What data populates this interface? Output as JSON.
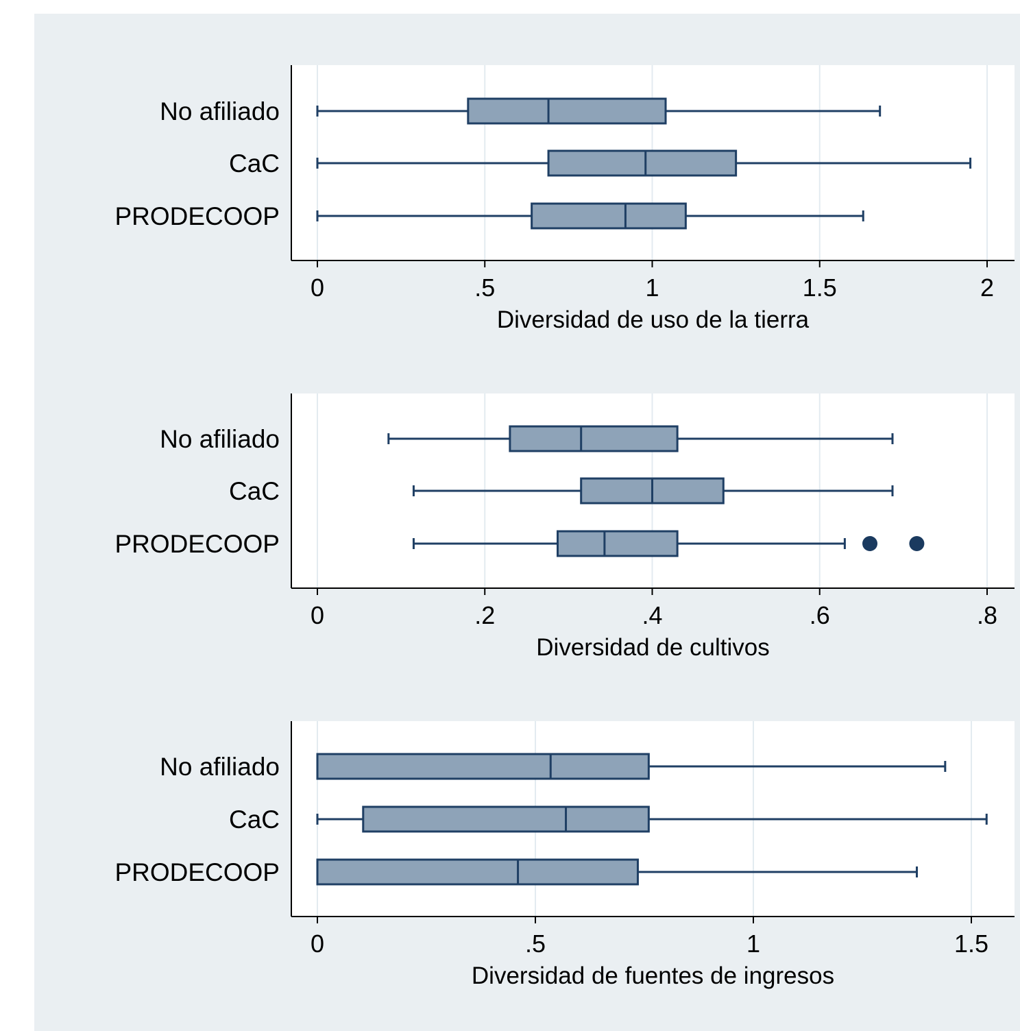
{
  "colors": {
    "outer_bg": "#eaeff2",
    "plot_bg": "#ffffff",
    "gridline": "#e3ebf0",
    "box_fill": "#8ea3b8",
    "box_stroke": "#1f3f64",
    "outlier": "#1a3a5f",
    "axis": "#000000"
  },
  "chart_data": [
    {
      "type": "box",
      "orientation": "horizontal",
      "xlabel": "Diversidad de uso de la tierra",
      "xlim": [
        0,
        2
      ],
      "ticks": [
        0,
        0.5,
        1,
        1.5,
        2
      ],
      "tick_labels": [
        "0",
        ".5",
        "1",
        "1.5",
        "2"
      ],
      "grid": true,
      "categories": [
        "No afiliado",
        "CaC",
        "PRODECOOP"
      ],
      "boxes": [
        {
          "group": "No afiliado",
          "min": 0,
          "q1": 0.45,
          "median": 0.69,
          "q3": 1.04,
          "max": 1.68,
          "outliers": []
        },
        {
          "group": "CaC",
          "min": 0,
          "q1": 0.69,
          "median": 0.98,
          "q3": 1.25,
          "max": 1.95,
          "outliers": []
        },
        {
          "group": "PRODECOOP",
          "min": 0,
          "q1": 0.64,
          "median": 0.92,
          "q3": 1.1,
          "max": 1.63,
          "outliers": []
        }
      ]
    },
    {
      "type": "box",
      "orientation": "horizontal",
      "xlabel": "Diversidad de cultivos",
      "xlim": [
        0,
        0.8
      ],
      "ticks": [
        0,
        0.2,
        0.4,
        0.6,
        0.8
      ],
      "tick_labels": [
        "0",
        ".2",
        ".4",
        ".6",
        ".8"
      ],
      "grid": true,
      "categories": [
        "No afiliado",
        "CaC",
        "PRODECOOP"
      ],
      "boxes": [
        {
          "group": "No afiliado",
          "min": 0.085,
          "q1": 0.23,
          "median": 0.315,
          "q3": 0.43,
          "max": 0.687,
          "outliers": []
        },
        {
          "group": "CaC",
          "min": 0.115,
          "q1": 0.315,
          "median": 0.4,
          "q3": 0.485,
          "max": 0.687,
          "outliers": []
        },
        {
          "group": "PRODECOOP",
          "min": 0.115,
          "q1": 0.287,
          "median": 0.343,
          "q3": 0.43,
          "max": 0.63,
          "outliers": [
            0.66,
            0.716
          ]
        }
      ]
    },
    {
      "type": "box",
      "orientation": "horizontal",
      "xlabel": "Diversidad de fuentes de ingresos",
      "xlim": [
        0,
        1.5
      ],
      "ticks": [
        0,
        0.5,
        1,
        1.5
      ],
      "tick_labels": [
        "0",
        ".5",
        "1",
        "1.5"
      ],
      "grid": true,
      "categories": [
        "No afiliado",
        "CaC",
        "PRODECOOP"
      ],
      "boxes": [
        {
          "group": "No afiliado",
          "min": 0,
          "q1": 0,
          "median": 0.535,
          "q3": 0.76,
          "max": 1.44,
          "outliers": []
        },
        {
          "group": "CaC",
          "min": 0,
          "q1": 0.105,
          "median": 0.57,
          "q3": 0.76,
          "max": 1.535,
          "outliers": []
        },
        {
          "group": "PRODECOOP",
          "min": 0,
          "q1": 0,
          "median": 0.46,
          "q3": 0.735,
          "max": 1.375,
          "outliers": []
        }
      ]
    }
  ]
}
